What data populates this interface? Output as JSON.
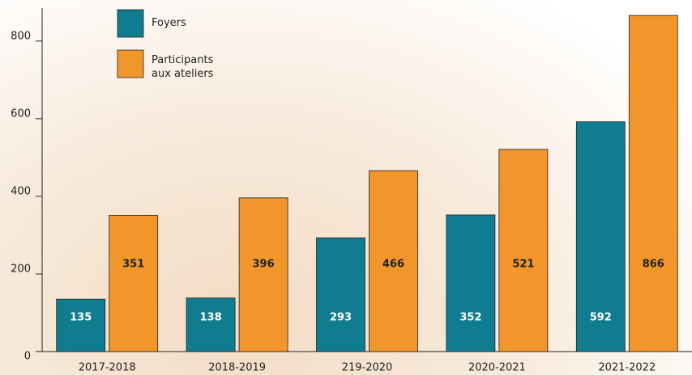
{
  "chart_data": {
    "type": "bar",
    "categories": [
      "2017-2018",
      "2018-2019",
      "219-2020",
      "2020-2021",
      "2021-2022"
    ],
    "series": [
      {
        "name": "Foyers",
        "color": "#0f7d8f",
        "values": [
          135,
          138,
          293,
          352,
          592
        ]
      },
      {
        "name": "Participants aux ateliers",
        "color": "#f0962a",
        "values": [
          351,
          396,
          466,
          521,
          866
        ]
      }
    ],
    "ylim": [
      0,
      885
    ],
    "yticks": [
      0,
      200,
      400,
      600,
      800
    ]
  }
}
